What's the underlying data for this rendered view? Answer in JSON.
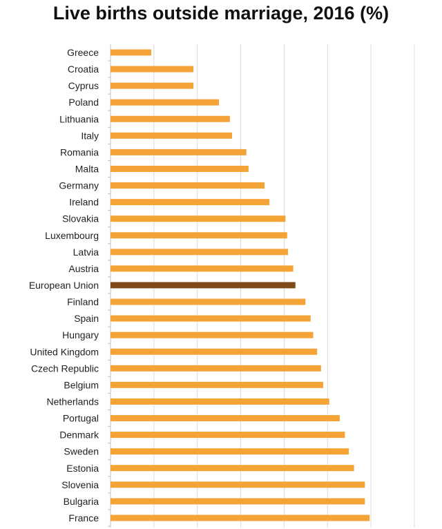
{
  "chart_data": {
    "type": "bar",
    "orientation": "horizontal",
    "title": "Live births outside marriage, 2016 (%)",
    "xlabel": "",
    "ylabel": "",
    "xlim": [
      0,
      70
    ],
    "grid": true,
    "categories": [
      "Greece",
      "Croatia",
      "Cyprus",
      "Poland",
      "Lithuania",
      "Italy",
      "Romania",
      "Malta",
      "Germany",
      "Ireland",
      "Slovakia",
      "Luxembourg",
      "Latvia",
      "Austria",
      "European Union",
      "Finland",
      "Spain",
      "Hungary",
      "United Kingdom",
      "Czech Republic",
      "Belgium",
      "Netherlands",
      "Portugal",
      "Denmark",
      "Sweden",
      "Estonia",
      "Slovenia",
      "Bulgaria",
      "France"
    ],
    "values": [
      9.4,
      19.1,
      19.1,
      25.0,
      27.5,
      28.0,
      31.3,
      31.8,
      35.5,
      36.6,
      40.3,
      40.7,
      40.9,
      42.1,
      42.6,
      44.9,
      46.1,
      46.7,
      47.6,
      48.5,
      49.0,
      50.4,
      52.8,
      54.0,
      54.9,
      56.1,
      58.6,
      58.6,
      59.7
    ],
    "highlight": "European Union",
    "colors": {
      "bar": "#F4A336",
      "highlight": "#7E4A1A",
      "grid": "#D9D9D9",
      "axis": "#BFBFBF"
    }
  }
}
